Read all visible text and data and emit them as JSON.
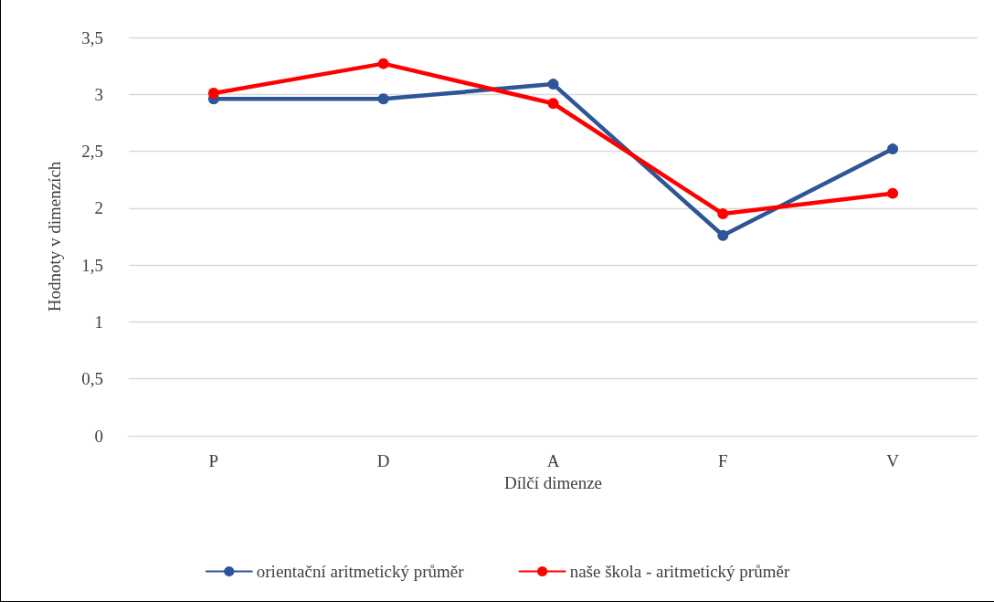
{
  "chart_data": {
    "type": "line",
    "xlabel": "Dílčí dimenze",
    "ylabel": "Hodnoty v dimenzích",
    "categories": [
      "P",
      "D",
      "A",
      "F",
      "V"
    ],
    "series": [
      {
        "name": "orientační aritmetický průměr",
        "color": "#2e5597",
        "values": [
          2.96,
          2.96,
          3.09,
          1.76,
          2.52
        ]
      },
      {
        "name": "naše škola - aritmetický průměr",
        "color": "#ff0000",
        "values": [
          3.01,
          3.27,
          2.92,
          1.95,
          2.13
        ]
      }
    ],
    "ylim": [
      0,
      3.5
    ],
    "yticks": [
      0,
      {
        "value": 0.5,
        "label": "0,5"
      },
      1,
      {
        "value": 1.5,
        "label": "1,5"
      },
      2,
      {
        "value": 2.5,
        "label": "2,5"
      },
      3,
      {
        "value": 3.5,
        "label": "3,5"
      }
    ],
    "grid": "y",
    "legend": "bottom",
    "marker": "circle",
    "line_style": "solid"
  }
}
